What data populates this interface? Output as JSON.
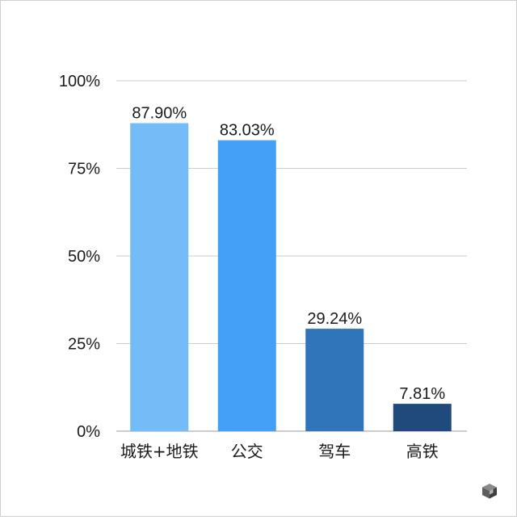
{
  "chart_data": {
    "type": "bar",
    "title": "",
    "xlabel": "",
    "ylabel": "",
    "categories": [
      "城铁+地铁",
      "公交",
      "驾车",
      "高铁"
    ],
    "values": [
      87.9,
      83.03,
      29.24,
      7.81
    ],
    "value_labels": [
      "87.90%",
      "83.03%",
      "29.24%",
      "7.81%"
    ],
    "bar_colors": [
      "#74bcf7",
      "#44a0f6",
      "#3074b9",
      "#1f4a7b"
    ],
    "ylim": [
      0,
      100
    ],
    "y_ticks": [
      0,
      25,
      50,
      75,
      100
    ],
    "y_tick_labels": [
      "0%",
      "25%",
      "50%",
      "75%",
      "100%"
    ],
    "grid": true,
    "grid_color": "#cccccc",
    "legend": "none"
  },
  "watermark": {
    "icon": "cube-logo-icon"
  }
}
